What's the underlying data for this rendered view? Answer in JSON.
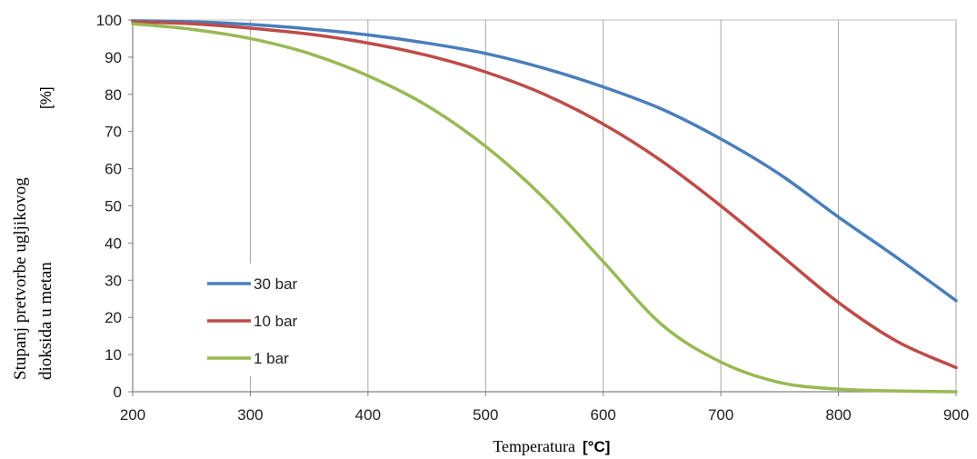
{
  "chart_data": {
    "type": "line",
    "xlabel": "Temperatura",
    "xlabel_unit": "[°C]",
    "ylabel_line1": "Stupanj pretvorbe ugljikovog",
    "ylabel_line2": "dioksida u metan",
    "ylabel_unit": "[%]",
    "xlim": [
      200,
      900
    ],
    "ylim": [
      0,
      100
    ],
    "xticks": [
      "200",
      "300",
      "400",
      "500",
      "600",
      "700",
      "800",
      "900"
    ],
    "yticks": [
      "0",
      "10",
      "20",
      "30",
      "40",
      "50",
      "60",
      "70",
      "80",
      "90",
      "100"
    ],
    "grid": "vertical",
    "legend_position": "lower-left",
    "x": [
      200,
      250,
      300,
      350,
      400,
      450,
      500,
      550,
      600,
      650,
      700,
      750,
      800,
      850,
      900
    ],
    "series": [
      {
        "name": "30 bar",
        "color": "#4a7ebb",
        "values": [
          99.8,
          99.5,
          98.8,
          97.6,
          96.0,
          93.8,
          91.0,
          87.0,
          82.0,
          76.0,
          68.0,
          58.5,
          47.0,
          36.0,
          24.5
        ]
      },
      {
        "name": "10 bar",
        "color": "#be4b48",
        "values": [
          99.5,
          99.0,
          97.8,
          96.2,
          93.8,
          90.5,
          86.0,
          80.0,
          72.0,
          62.0,
          50.0,
          37.0,
          24.0,
          13.5,
          6.5
        ]
      },
      {
        "name": "1 bar",
        "color": "#98b954",
        "values": [
          99.0,
          97.5,
          95.0,
          91.0,
          85.0,
          77.0,
          66.0,
          52.0,
          35.0,
          18.0,
          8.0,
          2.5,
          0.7,
          0.2,
          0.0
        ]
      }
    ]
  }
}
